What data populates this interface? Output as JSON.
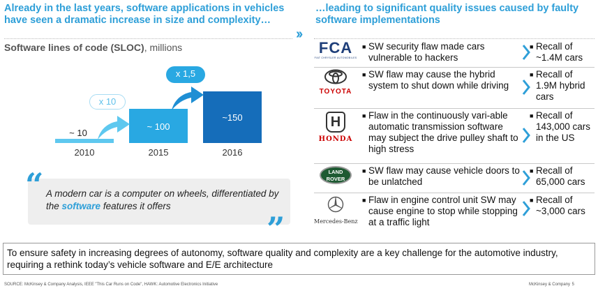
{
  "left_header": "Already in the last years, software applications in vehicles have seen a dramatic increase in size and complexity…",
  "right_header": "…leading to significant quality issues caused by faulty software implementations",
  "chart_title_bold": "Software lines of code (SLOC)",
  "chart_title_rest": ", millions",
  "chart_data": {
    "type": "bar",
    "title": "Software lines of code (SLOC), millions",
    "categories": [
      "2010",
      "2015",
      "2016"
    ],
    "values": [
      10,
      100,
      150
    ],
    "value_labels": [
      "~ 10",
      "~ 100",
      "~150"
    ],
    "multipliers": [
      "x 10",
      "x 1,5"
    ],
    "colors": [
      "#5ec8ef",
      "#29a8e2",
      "#156dba"
    ]
  },
  "quote": {
    "before": "A modern car is a computer on wheels, differentiated by the ",
    "highlight": "software",
    "after": " features it offers"
  },
  "recalls": [
    {
      "brand": "FCA",
      "logo_sub": "FIAT CHRYSLER AUTOMOBILES",
      "issue": "SW security flaw made cars vulnerable to hackers",
      "recall": "Recall of ~1.4M cars"
    },
    {
      "brand": "TOYOTA",
      "issue": "SW flaw may cause the hybrid system to shut down while driving",
      "recall": "Recall of 1.9M hybrid cars"
    },
    {
      "brand": "HONDA",
      "logo_mark": "H",
      "issue": "Flaw in the continuously vari-able automatic transmission software may subject the drive pulley shaft to high stress",
      "recall": "Recall of 143,000 cars in the US"
    },
    {
      "brand": "LAND ROVER",
      "logo_line1": "LAND",
      "logo_line2": "ROVER",
      "issue": "SW flaw may cause vehicle doors to be unlatched",
      "recall": "Recall of 65,000 cars"
    },
    {
      "brand": "Mercedes-Benz",
      "issue": "Flaw in engine control unit SW may cause engine to stop while stopping at a traffic light",
      "recall": "Recall of ~3,000 cars"
    }
  ],
  "bottom_text": "To ensure safety in increasing degrees of autonomy, software quality and complexity are a key challenge for the automotive industry, requiring a rethink today’s vehicle software and E/E architecture",
  "footer": {
    "source": "SOURCE: McKinsey & Company Analysis, IEEE \"This Car Runs on Code\", HAWK: Automotive Electronics Initiative",
    "company": "McKinsey & Company",
    "page": "5"
  },
  "colors": {
    "accent": "#2e9fd8",
    "bar_light": "#5ec8ef",
    "bar_mid": "#29a8e2",
    "bar_dark": "#156dba"
  }
}
